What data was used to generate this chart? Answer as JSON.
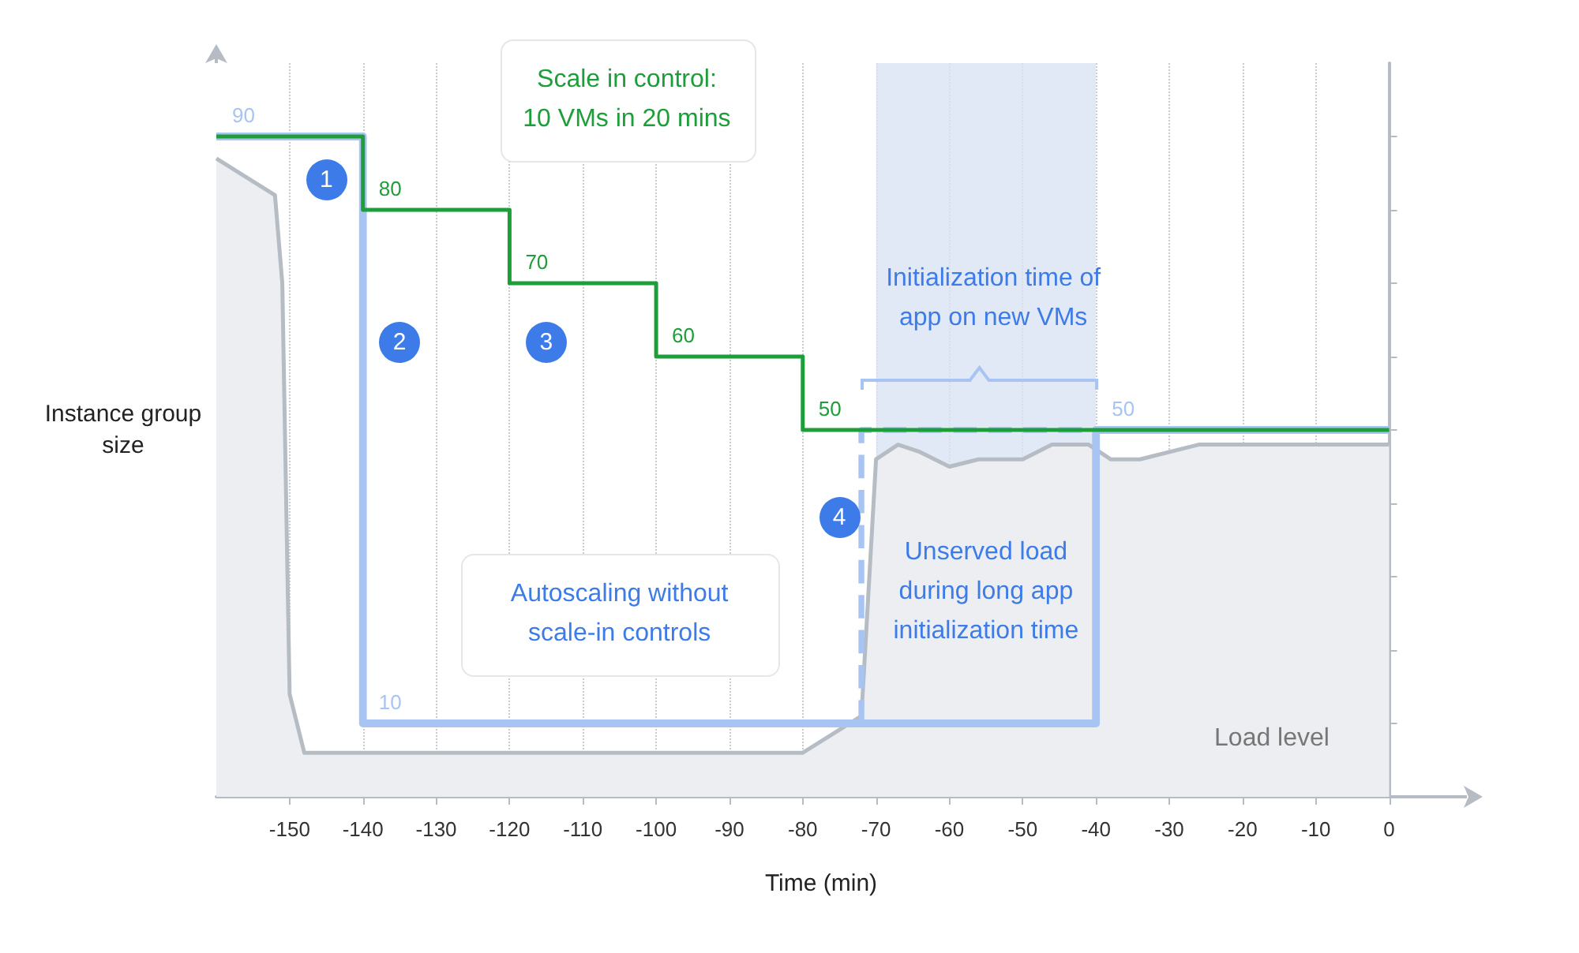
{
  "chart_data": {
    "type": "step",
    "xlabel": "Time (min)",
    "ylabel": "Instance group size",
    "xlim": [
      -160,
      5
    ],
    "xticks": [
      -150,
      -140,
      -130,
      -120,
      -110,
      -100,
      -90,
      -80,
      -70,
      -60,
      -50,
      -40,
      -30,
      -20,
      -10,
      0
    ],
    "ylim": [
      0,
      100
    ],
    "yticks": [
      {
        "value": 10,
        "label": null
      },
      {
        "value": 20,
        "label": null
      },
      {
        "value": 30,
        "label": null
      },
      {
        "value": 40,
        "label": null
      },
      {
        "value": 50,
        "label": null
      },
      {
        "value": 60,
        "label": null
      },
      {
        "value": 70,
        "label": null
      },
      {
        "value": 80,
        "label": null
      },
      {
        "value": 90,
        "label": null
      }
    ],
    "tick_labels": "x",
    "grid": "x",
    "marker": "none",
    "series": [
      {
        "type": "area",
        "color": "#b6bcc4",
        "x": [
          -160,
          -152,
          -151,
          -150,
          -148,
          -80,
          -72,
          -70,
          -67,
          -64,
          -60,
          -56,
          -50,
          -46,
          -41,
          -38,
          -34,
          -26,
          0
        ],
        "values": [
          87,
          82,
          70,
          14,
          6,
          6,
          11,
          46,
          48,
          47,
          45,
          46,
          46,
          48,
          48,
          46,
          46,
          48,
          48
        ]
      },
      {
        "color": "#a8c4f2",
        "x": [
          -160,
          -140,
          -40,
          0
        ],
        "values": [
          90,
          10,
          50,
          50
        ],
        "value_labels": [
          "90",
          "10",
          "50",
          null
        ]
      },
      {
        "type": "line",
        "color": "#a8c4f2",
        "line_style": "dashed",
        "x": [
          -72,
          -72,
          -40
        ],
        "values": [
          10,
          50,
          50
        ]
      },
      {
        "color": "#1e9e3a",
        "x": [
          -160,
          -140,
          -120,
          -100,
          -80,
          0
        ],
        "values": [
          90,
          80,
          70,
          60,
          50,
          50
        ],
        "value_labels": [
          null,
          "80",
          "70",
          "60",
          "50",
          null
        ]
      }
    ],
    "bands": [
      {
        "axis": "x",
        "from": -70,
        "to": -40,
        "label": "Unserved load during long app initialization time",
        "color": "#dbe4f4"
      }
    ],
    "annotations": [
      "Scale in control: 10 VMs in 20 mins",
      "Initialization time of app on new VMs",
      "Autoscaling without scale-in controls",
      "1",
      "2",
      "3",
      "4",
      "Load level"
    ]
  }
}
